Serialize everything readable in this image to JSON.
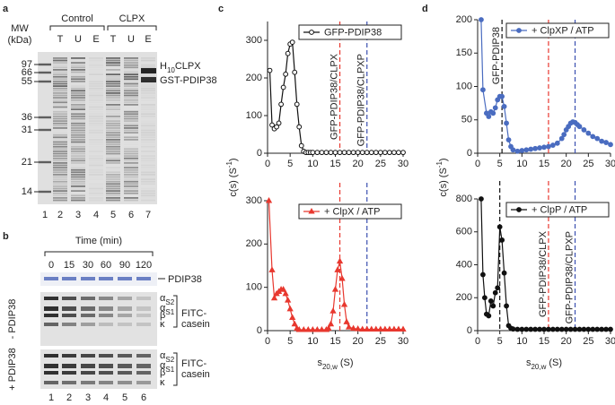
{
  "figure": {
    "panel_a": {
      "label": "a",
      "mw_title": "MW",
      "mw_unit": "(kDa)",
      "groups": [
        "Control",
        "CLPX"
      ],
      "fractions": [
        "T",
        "U",
        "E",
        "T",
        "U",
        "E"
      ],
      "mw": [
        97,
        66,
        55,
        36,
        31,
        21,
        14
      ],
      "lanes": [
        1,
        2,
        3,
        4,
        5,
        6,
        7
      ],
      "bands": [
        {
          "base": "H",
          "sub": "10",
          "rest": "CLPX"
        },
        {
          "base": "GST-PDIP38"
        }
      ]
    },
    "panel_b": {
      "label": "b",
      "time_title": "Time (min)",
      "times": [
        0,
        15,
        30,
        60,
        90,
        120
      ],
      "strip_label": "PDIP38",
      "rows": [
        "- PDIP38",
        "+ PDIP38"
      ],
      "casein_bands": [
        {
          "symbol": "α",
          "sub": "S2"
        },
        {
          "symbol": "α",
          "sub": "S1"
        },
        {
          "symbol": "β"
        },
        {
          "symbol": "κ"
        }
      ],
      "casein_label": [
        "FITC-",
        "casein"
      ],
      "lanes": [
        1,
        2,
        3,
        4,
        5,
        6
      ]
    },
    "panel_c": {
      "label": "c"
    },
    "panel_d": {
      "label": "d"
    }
  },
  "chart_data": [
    {
      "type": "line",
      "legend": "upper right",
      "ylabel": {
        "text": "c(s) (S",
        "sup": "-1",
        "close": ")"
      },
      "x": [
        0.5,
        1,
        1.5,
        2,
        2.5,
        3,
        3.5,
        4,
        4.5,
        5,
        5.5,
        6,
        6.5,
        7,
        7.5,
        8,
        8.5,
        9,
        9.5,
        10,
        11,
        12,
        13,
        14,
        15,
        16,
        17,
        18,
        19,
        20,
        21,
        22,
        23,
        24,
        25,
        26,
        27,
        28,
        29,
        30
      ],
      "series": [
        {
          "name": "GFP-PDIP38",
          "color": "#111111",
          "marker": "open-circle",
          "values": [
            220,
            75,
            65,
            70,
            80,
            130,
            175,
            210,
            265,
            290,
            295,
            215,
            130,
            70,
            20,
            5,
            2,
            2,
            2,
            2,
            2,
            2,
            2,
            2,
            2,
            2,
            2,
            2,
            2,
            2,
            2,
            2,
            2,
            2,
            2,
            2,
            2,
            2,
            2,
            2
          ]
        }
      ],
      "vlines": [
        {
          "x": 16,
          "color": "#e8382f",
          "label": "GFP-PDIP38/CLPX"
        },
        {
          "x": 22,
          "color": "#3a4fb0",
          "label": "GFP-PDIP38/CLPXP"
        }
      ],
      "xlim": [
        0,
        30
      ],
      "xticks": [
        0,
        5,
        10,
        15,
        20,
        25,
        30
      ],
      "ylim": [
        0,
        350
      ],
      "yticks": [
        0,
        100,
        200,
        300
      ]
    },
    {
      "type": "line",
      "legend": "upper right",
      "xlabel": {
        "symbol": "s",
        "sub": "20,w",
        "unit": "(S)"
      },
      "x": [
        0.3,
        1,
        1.5,
        2,
        2.5,
        3,
        3.5,
        4,
        4.5,
        5,
        5.5,
        6,
        6.5,
        7,
        8,
        9,
        10,
        11,
        12,
        13,
        13.5,
        14,
        14.5,
        15,
        15.5,
        16,
        16.5,
        17,
        17.5,
        18,
        19,
        20,
        21,
        22,
        23,
        24,
        25,
        26,
        27,
        28,
        29,
        30
      ],
      "series": [
        {
          "name": "+ ClpX / ATP",
          "color": "#e8382f",
          "marker": "triangle",
          "values": [
            300,
            140,
            75,
            85,
            90,
            95,
            95,
            85,
            70,
            50,
            30,
            15,
            5,
            2,
            2,
            2,
            2,
            2,
            2,
            2,
            5,
            15,
            45,
            95,
            140,
            160,
            120,
            60,
            20,
            8,
            5,
            4,
            3,
            3,
            3,
            3,
            3,
            3,
            3,
            3,
            3,
            3
          ]
        }
      ],
      "vlines": [
        {
          "x": 16,
          "color": "#e8382f"
        },
        {
          "x": 22,
          "color": "#3a4fb0"
        }
      ],
      "xlim": [
        0,
        30
      ],
      "xticks": [
        0,
        5,
        10,
        15,
        20,
        25,
        30
      ],
      "ylim": [
        0,
        300
      ],
      "yticks": [
        0,
        100,
        200,
        300
      ]
    },
    {
      "type": "line",
      "legend": "upper right",
      "ylabel": {
        "text": "c(s) (S",
        "sup": "-1",
        "close": ")"
      },
      "x": [
        0.8,
        1.2,
        2,
        2.5,
        3,
        3.5,
        4,
        4.5,
        5,
        5.5,
        6,
        6.5,
        7,
        7.5,
        8,
        9,
        10,
        11,
        12,
        13,
        14,
        15,
        16,
        17,
        18,
        19,
        19.5,
        20,
        20.5,
        21,
        21.5,
        22,
        22.5,
        23,
        24,
        25,
        26,
        27,
        28,
        29,
        30
      ],
      "series": [
        {
          "name": "+ ClpXP / ATP",
          "color": "#4a6cc0",
          "marker": "circle",
          "values": [
            200,
            95,
            60,
            55,
            62,
            60,
            68,
            80,
            85,
            85,
            70,
            45,
            20,
            10,
            5,
            3,
            4,
            5,
            6,
            7,
            8,
            9,
            10,
            12,
            15,
            22,
            28,
            35,
            40,
            45,
            47,
            46,
            43,
            40,
            35,
            30,
            25,
            22,
            18,
            16,
            13
          ]
        }
      ],
      "vlines": [
        {
          "x": 5.5,
          "color": "#111111",
          "label": "GFP-PDIP38"
        },
        {
          "x": 16,
          "color": "#e8382f"
        },
        {
          "x": 22,
          "color": "#3a4fb0"
        }
      ],
      "xlim": [
        0,
        30
      ],
      "xticks": [
        0,
        5,
        10,
        15,
        20,
        25,
        30
      ],
      "ylim": [
        0,
        200
      ],
      "yticks": [
        0,
        50,
        100,
        150,
        200
      ]
    },
    {
      "type": "line",
      "legend": "upper right",
      "xlabel": {
        "symbol": "s",
        "sub": "20,w",
        "unit": "(S)"
      },
      "x": [
        0.8,
        1.2,
        1.6,
        2,
        2.5,
        3,
        3.5,
        4,
        4.5,
        5,
        5.5,
        6,
        6.5,
        7,
        7.5,
        8,
        9,
        10,
        11,
        12,
        13,
        14,
        15,
        16,
        17,
        18,
        19,
        20,
        21,
        22,
        23,
        24,
        25,
        26,
        27,
        28,
        29,
        30
      ],
      "series": [
        {
          "name": "+ ClpP / ATP",
          "color": "#111111",
          "marker": "circle",
          "values": [
            800,
            340,
            200,
            100,
            90,
            180,
            150,
            230,
            260,
            630,
            550,
            350,
            150,
            30,
            15,
            10,
            8,
            8,
            8,
            8,
            8,
            8,
            8,
            8,
            8,
            8,
            8,
            8,
            8,
            8,
            8,
            8,
            8,
            8,
            8,
            8,
            8,
            8
          ]
        }
      ],
      "vlines": [
        {
          "x": 5,
          "color": "#111111"
        },
        {
          "x": 16,
          "color": "#e8382f",
          "label": "GFP-PDIP38/CLPX"
        },
        {
          "x": 22,
          "color": "#3a4fb0",
          "label": "GFP-PDIP38/CLPXP"
        }
      ],
      "xlim": [
        0,
        30
      ],
      "xticks": [
        0,
        5,
        10,
        15,
        20,
        25,
        30
      ],
      "ylim": [
        0,
        800
      ],
      "yticks": [
        0,
        200,
        400,
        600,
        800
      ]
    }
  ]
}
